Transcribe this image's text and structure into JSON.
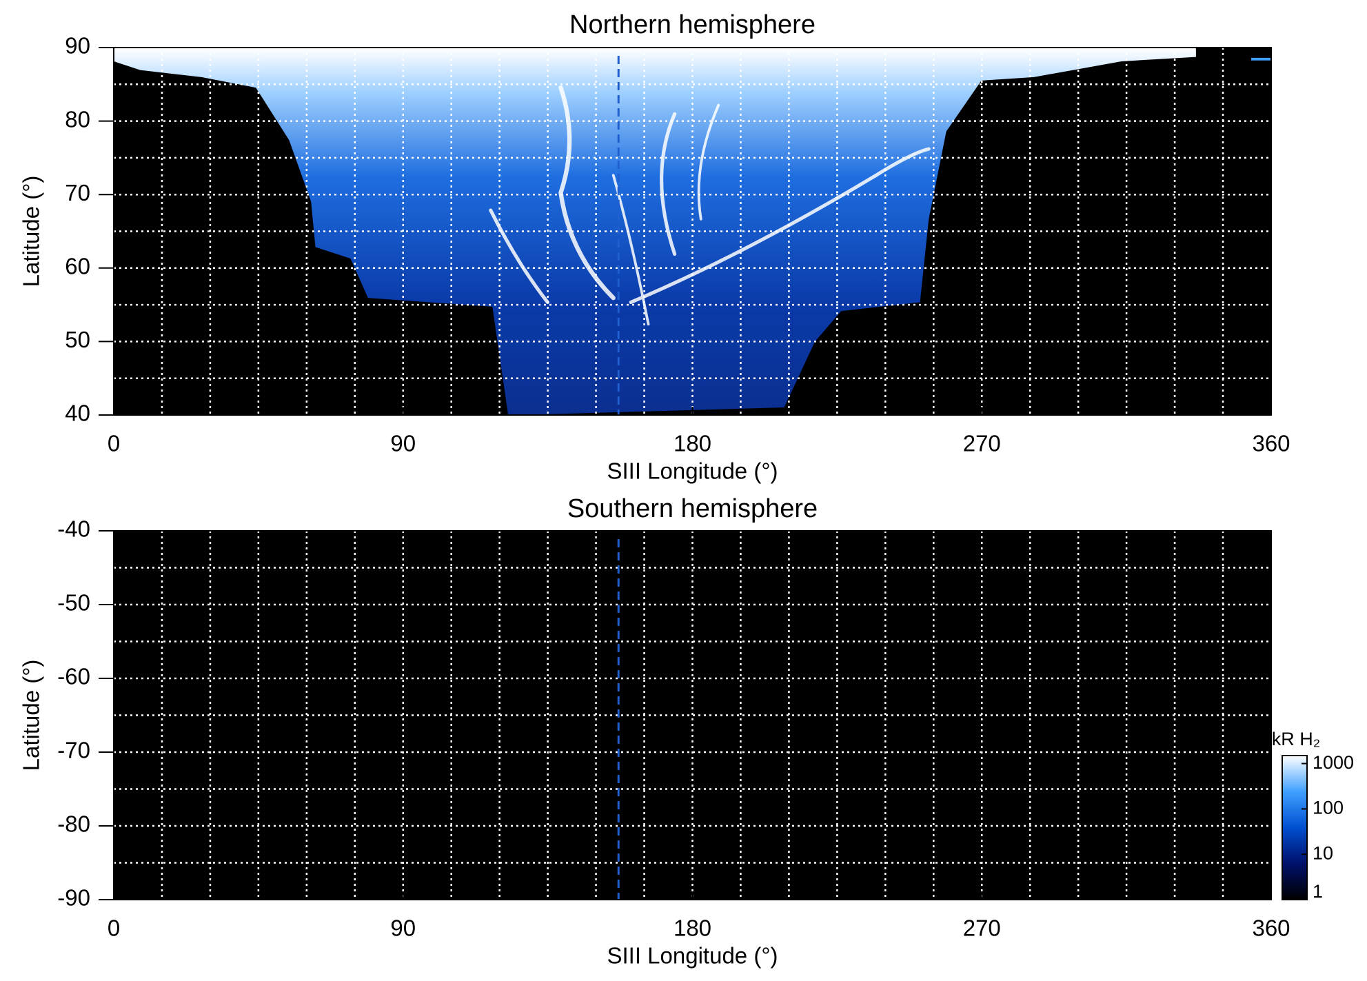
{
  "chart_data": [
    {
      "type": "heatmap",
      "title": "Northern hemisphere",
      "xlabel": "SIII Longitude (°)",
      "ylabel": "Latitude (°)",
      "xlim": [
        0,
        360
      ],
      "xticks": [
        0,
        90,
        180,
        270,
        360
      ],
      "ylim": [
        40,
        90
      ],
      "yticks": [
        40,
        50,
        60,
        70,
        80,
        90
      ],
      "grid_x": [
        15,
        30,
        45,
        60,
        75,
        90,
        105,
        120,
        135,
        150,
        165,
        180,
        195,
        210,
        225,
        240,
        255,
        270,
        285,
        300,
        315,
        330,
        345
      ],
      "grid_y": [
        45,
        50,
        55,
        60,
        65,
        70,
        75,
        80,
        85
      ],
      "grid_color": "#ffffff",
      "reference_x": 157,
      "reference_color": "#1f5fd0"
    },
    {
      "type": "heatmap",
      "title": "Southern hemisphere",
      "xlabel": "SIII Longitude (°)",
      "ylabel": "Latitude (°)",
      "xlim": [
        0,
        360
      ],
      "xticks": [
        0,
        90,
        180,
        270,
        360
      ],
      "ylim": [
        -90,
        -40
      ],
      "yticks": [
        -90,
        -80,
        -70,
        -60,
        -50,
        -40
      ],
      "grid_x": [
        15,
        30,
        45,
        60,
        75,
        90,
        105,
        120,
        135,
        150,
        165,
        180,
        195,
        210,
        225,
        240,
        255,
        270,
        285,
        300,
        315,
        330,
        345
      ],
      "grid_y": [
        -85,
        -80,
        -75,
        -70,
        -65,
        -60,
        -55,
        -50,
        -45
      ],
      "grid_color": "#ffffff",
      "reference_x": 157,
      "reference_color": "#1f5fd0",
      "colorbar": {
        "label": "kR H₂",
        "log": true,
        "lim": [
          1,
          1500
        ],
        "ticks": [
          1,
          10,
          100,
          1000
        ],
        "colors": [
          "#000000",
          "#00106b",
          "#0050d0",
          "#40a0ff",
          "#ffffff"
        ]
      }
    }
  ]
}
